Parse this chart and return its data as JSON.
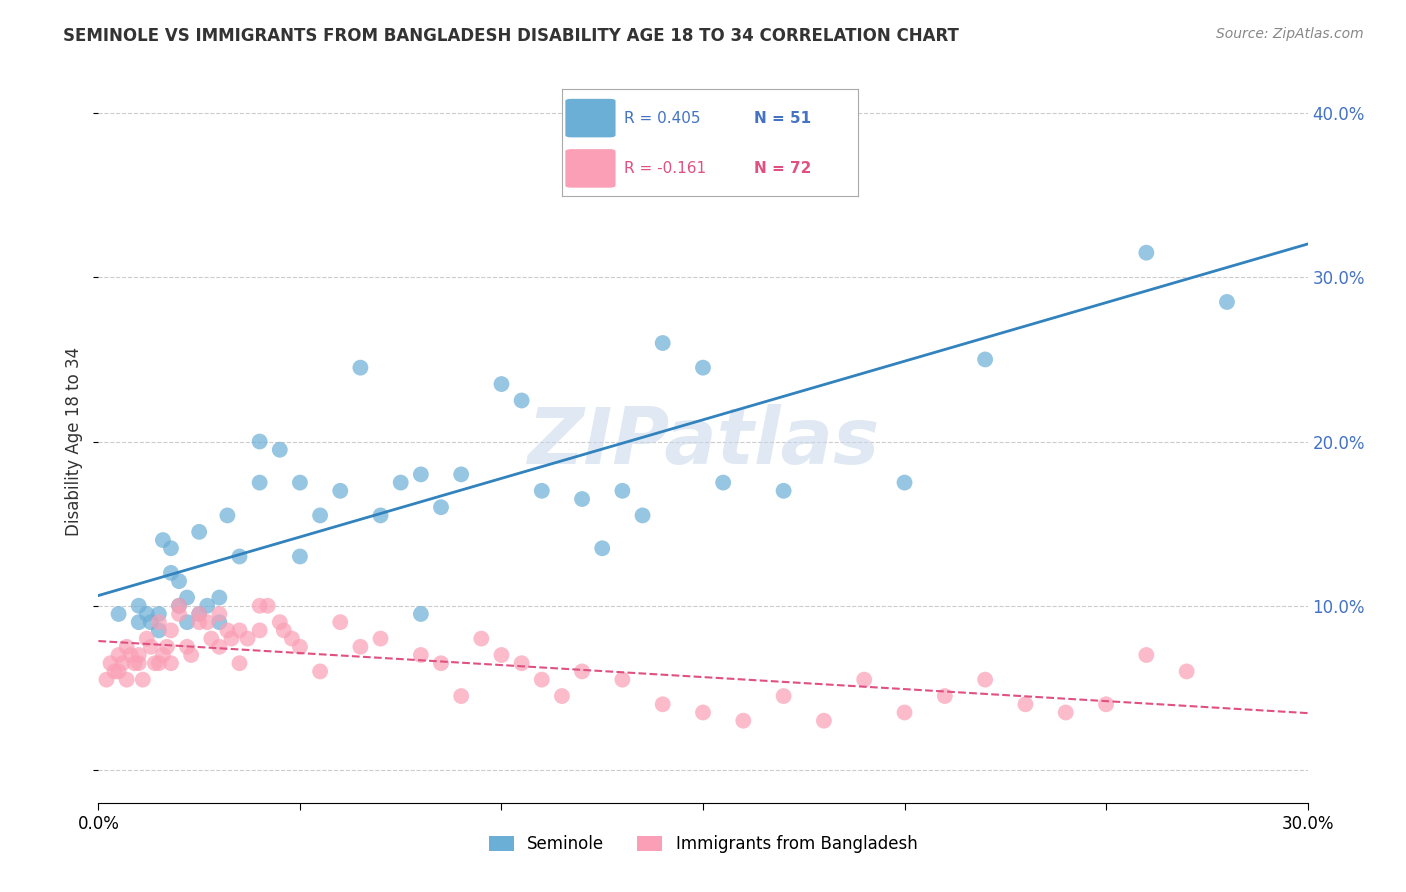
{
  "title": "SEMINOLE VS IMMIGRANTS FROM BANGLADESH DISABILITY AGE 18 TO 34 CORRELATION CHART",
  "source": "Source: ZipAtlas.com",
  "ylabel": "Disability Age 18 to 34",
  "xmin": 0.0,
  "xmax": 0.3,
  "ymin": -0.02,
  "ymax": 0.42,
  "yticks": [
    0.0,
    0.1,
    0.2,
    0.3,
    0.4
  ],
  "ytick_labels": [
    "",
    "10.0%",
    "20.0%",
    "30.0%",
    "40.0%"
  ],
  "xticks": [
    0.0,
    0.05,
    0.1,
    0.15,
    0.2,
    0.25,
    0.3
  ],
  "xtick_labels": [
    "0.0%",
    "",
    "",
    "",
    "",
    "",
    "30.0%"
  ],
  "legend_r1": "R = 0.405",
  "legend_n1": "N = 51",
  "legend_r2": "R = -0.161",
  "legend_n2": "N = 72",
  "color_blue": "#6baed6",
  "color_pink": "#fa9fb5",
  "color_blue_line": "#3182bd",
  "color_pink_line": "#e05080",
  "watermark": "ZIPatlas",
  "seminole_x": [
    0.005,
    0.01,
    0.01,
    0.012,
    0.013,
    0.015,
    0.015,
    0.016,
    0.018,
    0.018,
    0.02,
    0.02,
    0.022,
    0.022,
    0.025,
    0.025,
    0.027,
    0.03,
    0.03,
    0.032,
    0.035,
    0.04,
    0.04,
    0.045,
    0.05,
    0.05,
    0.055,
    0.06,
    0.065,
    0.07,
    0.075,
    0.08,
    0.08,
    0.085,
    0.09,
    0.1,
    0.105,
    0.11,
    0.12,
    0.125,
    0.13,
    0.135,
    0.14,
    0.15,
    0.155,
    0.16,
    0.17,
    0.2,
    0.22,
    0.26,
    0.28
  ],
  "seminole_y": [
    0.095,
    0.1,
    0.09,
    0.095,
    0.09,
    0.085,
    0.095,
    0.14,
    0.135,
    0.12,
    0.115,
    0.1,
    0.09,
    0.105,
    0.095,
    0.145,
    0.1,
    0.105,
    0.09,
    0.155,
    0.13,
    0.2,
    0.175,
    0.195,
    0.175,
    0.13,
    0.155,
    0.17,
    0.245,
    0.155,
    0.175,
    0.18,
    0.095,
    0.16,
    0.18,
    0.235,
    0.225,
    0.17,
    0.165,
    0.135,
    0.17,
    0.155,
    0.26,
    0.245,
    0.175,
    0.38,
    0.17,
    0.175,
    0.25,
    0.315,
    0.285
  ],
  "bangladesh_x": [
    0.002,
    0.003,
    0.004,
    0.005,
    0.005,
    0.006,
    0.007,
    0.007,
    0.008,
    0.009,
    0.01,
    0.01,
    0.011,
    0.012,
    0.013,
    0.014,
    0.015,
    0.015,
    0.016,
    0.017,
    0.018,
    0.018,
    0.02,
    0.02,
    0.022,
    0.023,
    0.025,
    0.025,
    0.027,
    0.028,
    0.03,
    0.03,
    0.032,
    0.033,
    0.035,
    0.035,
    0.037,
    0.04,
    0.04,
    0.042,
    0.045,
    0.046,
    0.048,
    0.05,
    0.055,
    0.06,
    0.065,
    0.07,
    0.08,
    0.085,
    0.09,
    0.095,
    0.1,
    0.105,
    0.11,
    0.115,
    0.12,
    0.13,
    0.14,
    0.15,
    0.16,
    0.17,
    0.18,
    0.19,
    0.2,
    0.21,
    0.22,
    0.23,
    0.24,
    0.25,
    0.26,
    0.27
  ],
  "bangladesh_y": [
    0.055,
    0.065,
    0.06,
    0.06,
    0.07,
    0.065,
    0.055,
    0.075,
    0.07,
    0.065,
    0.07,
    0.065,
    0.055,
    0.08,
    0.075,
    0.065,
    0.065,
    0.09,
    0.07,
    0.075,
    0.065,
    0.085,
    0.1,
    0.095,
    0.075,
    0.07,
    0.09,
    0.095,
    0.09,
    0.08,
    0.075,
    0.095,
    0.085,
    0.08,
    0.085,
    0.065,
    0.08,
    0.1,
    0.085,
    0.1,
    0.09,
    0.085,
    0.08,
    0.075,
    0.06,
    0.09,
    0.075,
    0.08,
    0.07,
    0.065,
    0.045,
    0.08,
    0.07,
    0.065,
    0.055,
    0.045,
    0.06,
    0.055,
    0.04,
    0.035,
    0.03,
    0.045,
    0.03,
    0.055,
    0.035,
    0.045,
    0.055,
    0.04,
    0.035,
    0.04,
    0.07,
    0.06
  ]
}
